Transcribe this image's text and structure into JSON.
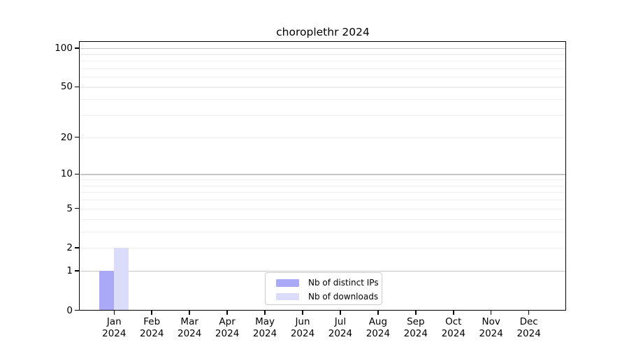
{
  "chart_data": {
    "type": "bar",
    "title": "choroplethr 2024",
    "x_months": [
      "Jan",
      "Feb",
      "Mar",
      "Apr",
      "May",
      "Jun",
      "Jul",
      "Aug",
      "Sep",
      "Oct",
      "Nov",
      "Dec"
    ],
    "x_year": "2024",
    "series": [
      {
        "name": "Nb of distinct IPs",
        "color": "#a9a9f8",
        "values": [
          1,
          0,
          0,
          0,
          0,
          0,
          0,
          0,
          0,
          0,
          0,
          0
        ]
      },
      {
        "name": "Nb of downloads",
        "color": "#dbdbfa",
        "values": [
          2,
          0,
          0,
          0,
          0,
          0,
          0,
          0,
          0,
          0,
          0,
          0
        ]
      }
    ],
    "yticks": [
      0,
      1,
      2,
      5,
      10,
      20,
      50,
      100
    ],
    "ymax": 113,
    "yscale": "log10(value+1)",
    "grid_major_values": [
      1,
      10,
      100
    ],
    "grid_minor_values": [
      2,
      3,
      4,
      5,
      6,
      7,
      8,
      9,
      20,
      30,
      40,
      50,
      60,
      70,
      80,
      90
    ],
    "legend_position": "lower center",
    "colors": {
      "background": "#ffffff",
      "axis": "#000000",
      "grid_major": "#c6c6c6",
      "grid_minor": "#efefef",
      "legend_border": "#cccccc",
      "text": "#000000"
    }
  }
}
